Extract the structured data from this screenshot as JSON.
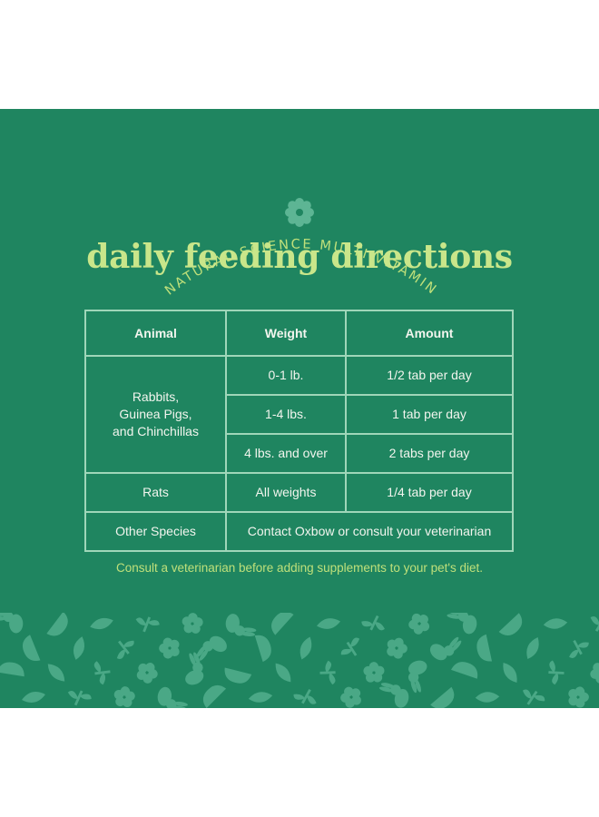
{
  "colors": {
    "panel": "#1f8560",
    "accent": "#c9e68a",
    "table_line": "#9fd6b9",
    "pattern": "#4aa886"
  },
  "header": {
    "arc_text": "NATURAL SCIENCE MULTI-VITAMIN",
    "title": "daily feeding directions",
    "badge_icon": "flower-icon"
  },
  "table": {
    "headers": [
      "Animal",
      "Weight",
      "Amount"
    ],
    "rows": [
      {
        "animal": "Rabbits,\nGuinea Pigs,\nand Chinchillas",
        "weights": [
          {
            "weight": "0-1 lb.",
            "amount": "1/2 tab per day"
          },
          {
            "weight": "1-4 lbs.",
            "amount": "1 tab per day"
          },
          {
            "weight": "4 lbs. and over",
            "amount": "2 tabs per day"
          }
        ]
      },
      {
        "animal": "Rats",
        "weight": "All weights",
        "amount": "1/4 tab per day"
      },
      {
        "animal": "Other Species",
        "note": "Contact Oxbow or consult your veterinarian"
      }
    ]
  },
  "footer_note": "Consult a veterinarian before adding supplements to your pet's diet.",
  "pattern": {
    "icons": [
      "rabbit-icon",
      "leaf-icon",
      "flower-icon",
      "bowl-icon",
      "sprout-icon"
    ]
  }
}
